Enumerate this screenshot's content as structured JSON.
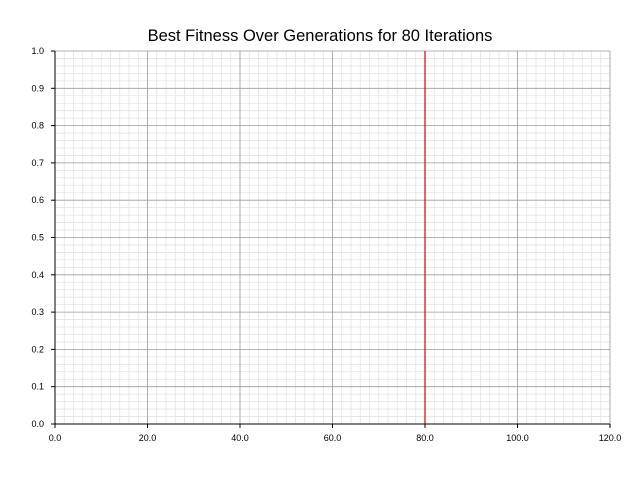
{
  "chart_data": {
    "type": "line",
    "title": "Best Fitness Over Generations for 80 Iterations",
    "xlabel": "",
    "ylabel": "",
    "xlim": [
      0,
      120
    ],
    "ylim": [
      0,
      1
    ],
    "x_ticks": [
      "0.0",
      "20.0",
      "40.0",
      "60.0",
      "80.0",
      "100.0",
      "120.0"
    ],
    "y_ticks": [
      "0.0",
      "0.1",
      "0.2",
      "0.3",
      "0.4",
      "0.5",
      "0.6",
      "0.7",
      "0.8",
      "0.9",
      "1.0"
    ],
    "grid": true,
    "series": [],
    "vertical_lines": [
      {
        "x": 80,
        "color": "#e00000"
      }
    ]
  }
}
